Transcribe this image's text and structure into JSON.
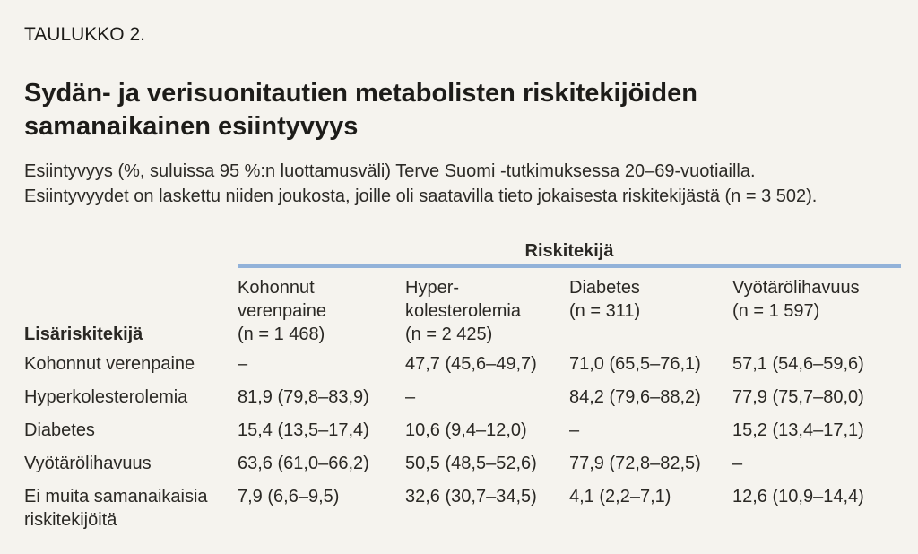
{
  "page": {
    "kicker": "TAULUKKO 2.",
    "title": "Sydän- ja verisuonitautien metabolisten riskitekijöiden samanaikainen esiintyvyys",
    "description_line1": "Esiintyvyys (%, suluissa 95 %:n luottamusväli) Terve Suomi -tutkimuksessa 20–69-vuotiailla.",
    "description_line2": "Esiintyvyydet on laskettu niiden joukosta, joille oli saatavilla tieto jokaisesta riskitekijästä (n = 3 502)."
  },
  "table": {
    "group_header": "Riskitekijä",
    "row_header": "Lisäriskitekijä",
    "columns": [
      {
        "line1": "Kohonnut",
        "line2": "verenpaine",
        "n": "(n = 1 468)"
      },
      {
        "line1": "Hyper-",
        "line2": "kolesterolemia",
        "n": "(n = 2 425)"
      },
      {
        "line1": "Diabetes",
        "n": "(n = 311)"
      },
      {
        "line1": "Vyötärölihavuus",
        "n": "(n = 1 597)"
      }
    ],
    "rows": [
      {
        "label": "Kohonnut verenpaine",
        "cells": [
          "–",
          "47,7 (45,6–49,7)",
          "71,0 (65,5–76,1)",
          "57,1 (54,6–59,6)"
        ]
      },
      {
        "label": "Hyperkolesterolemia",
        "cells": [
          "81,9 (79,8–83,9)",
          "–",
          "84,2 (79,6–88,2)",
          "77,9 (75,7–80,0)"
        ]
      },
      {
        "label": "Diabetes",
        "cells": [
          "15,4 (13,5–17,4)",
          "10,6 (9,4–12,0)",
          "–",
          "15,2 (13,4–17,1)"
        ]
      },
      {
        "label": "Vyötärölihavuus",
        "cells": [
          "63,6 (61,0–66,2)",
          "50,5 (48,5–52,6)",
          "77,9 (72,8–82,5)",
          "–"
        ]
      },
      {
        "label": "Ei muita samanaikaisia riskitekijöitä",
        "cells": [
          "7,9 (6,6–9,5)",
          "32,6 (30,7–34,5)",
          "4,1 (2,2–7,1)",
          "12,6 (10,9–14,4)"
        ]
      }
    ]
  },
  "colors": {
    "background": "#f5f3ee",
    "accent_rule": "#92b2d9",
    "heading_text": "#1d1c19",
    "body_text": "#2c2a26"
  }
}
